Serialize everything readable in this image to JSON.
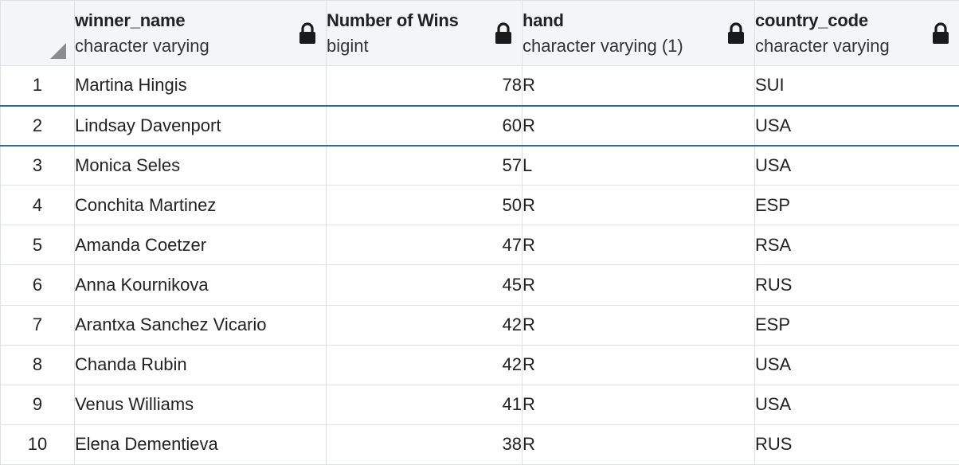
{
  "columns": [
    {
      "name": "winner_name",
      "type": "character varying"
    },
    {
      "name": "Number of Wins",
      "type": "bigint"
    },
    {
      "name": "hand",
      "type": "character varying (1)"
    },
    {
      "name": "country_code",
      "type": "character varying"
    }
  ],
  "rows": [
    {
      "row": "1",
      "winner_name": "Martina Hingis",
      "wins": "78",
      "hand": "R",
      "country_code": "SUI"
    },
    {
      "row": "2",
      "winner_name": "Lindsay Davenport",
      "wins": "60",
      "hand": "R",
      "country_code": "USA"
    },
    {
      "row": "3",
      "winner_name": "Monica Seles",
      "wins": "57",
      "hand": "L",
      "country_code": "USA"
    },
    {
      "row": "4",
      "winner_name": "Conchita Martinez",
      "wins": "50",
      "hand": "R",
      "country_code": "ESP"
    },
    {
      "row": "5",
      "winner_name": "Amanda Coetzer",
      "wins": "47",
      "hand": "R",
      "country_code": "RSA"
    },
    {
      "row": "6",
      "winner_name": "Anna Kournikova",
      "wins": "45",
      "hand": "R",
      "country_code": "RUS"
    },
    {
      "row": "7",
      "winner_name": "Arantxa Sanchez Vicario",
      "wins": "42",
      "hand": "R",
      "country_code": "ESP"
    },
    {
      "row": "8",
      "winner_name": "Chanda Rubin",
      "wins": "42",
      "hand": "R",
      "country_code": "USA"
    },
    {
      "row": "9",
      "winner_name": "Venus Williams",
      "wins": "41",
      "hand": "R",
      "country_code": "USA"
    },
    {
      "row": "10",
      "winner_name": "Elena Dementieva",
      "wins": "38",
      "hand": "R",
      "country_code": "RUS"
    }
  ],
  "selected_row": "2",
  "icons": {
    "column_lock": "lock-icon",
    "corner": "select-all-corner-icon"
  },
  "colors": {
    "header_bg": "#f3f5f7",
    "grid_line": "#dee2e6",
    "selection_border": "#2c6aa0"
  }
}
